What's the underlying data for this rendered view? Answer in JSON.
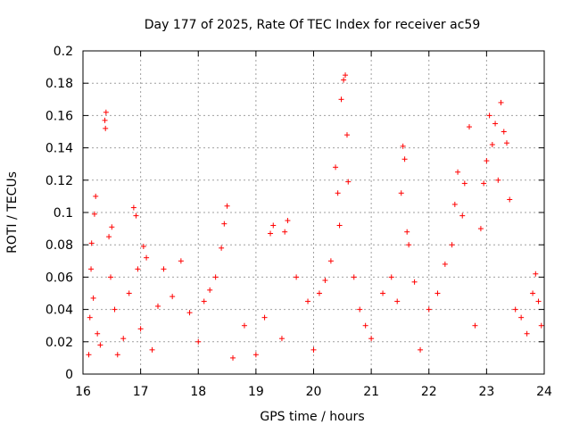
{
  "chart_data": {
    "type": "scatter",
    "title": "Day 177 of 2025, Rate Of TEC Index for receiver ac59",
    "xlabel": "GPS time / hours",
    "ylabel": "ROTI / TECUs",
    "xlim": [
      16,
      24
    ],
    "ylim": [
      0,
      0.2
    ],
    "grid": true,
    "marker": "plus",
    "color": "#ff0000",
    "x_ticks": [
      "16",
      "17",
      "18",
      "19",
      "20",
      "21",
      "22",
      "23",
      "24"
    ],
    "y_ticks": [
      "0",
      "0.02",
      "0.04",
      "0.06",
      "0.08",
      "0.1",
      "0.12",
      "0.14",
      "0.16",
      "0.18",
      "0.2"
    ],
    "x_tick_values": [
      16,
      17,
      18,
      19,
      20,
      21,
      22,
      23,
      24
    ],
    "y_tick_values": [
      0,
      0.02,
      0.04,
      0.06,
      0.08,
      0.1,
      0.12,
      0.14,
      0.16,
      0.18,
      0.2
    ],
    "series": [
      {
        "points": [
          [
            16.1,
            0.012
          ],
          [
            16.12,
            0.035
          ],
          [
            16.14,
            0.065
          ],
          [
            16.15,
            0.081
          ],
          [
            16.18,
            0.047
          ],
          [
            16.2,
            0.099
          ],
          [
            16.22,
            0.11
          ],
          [
            16.25,
            0.025
          ],
          [
            16.3,
            0.018
          ],
          [
            16.38,
            0.157
          ],
          [
            16.4,
            0.162
          ],
          [
            16.39,
            0.152
          ],
          [
            16.45,
            0.085
          ],
          [
            16.48,
            0.06
          ],
          [
            16.5,
            0.091
          ],
          [
            16.55,
            0.04
          ],
          [
            16.6,
            0.012
          ],
          [
            16.7,
            0.022
          ],
          [
            16.8,
            0.05
          ],
          [
            16.88,
            0.103
          ],
          [
            16.92,
            0.098
          ],
          [
            16.95,
            0.065
          ],
          [
            17.0,
            0.028
          ],
          [
            17.05,
            0.079
          ],
          [
            17.1,
            0.072
          ],
          [
            17.2,
            0.015
          ],
          [
            17.3,
            0.042
          ],
          [
            17.4,
            0.065
          ],
          [
            17.55,
            0.048
          ],
          [
            17.7,
            0.07
          ],
          [
            17.85,
            0.038
          ],
          [
            18.0,
            0.02
          ],
          [
            18.1,
            0.045
          ],
          [
            18.2,
            0.052
          ],
          [
            18.3,
            0.06
          ],
          [
            18.4,
            0.078
          ],
          [
            18.45,
            0.093
          ],
          [
            18.5,
            0.104
          ],
          [
            18.6,
            0.01
          ],
          [
            18.8,
            0.03
          ],
          [
            19.0,
            0.012
          ],
          [
            19.15,
            0.035
          ],
          [
            19.25,
            0.087
          ],
          [
            19.3,
            0.092
          ],
          [
            19.45,
            0.022
          ],
          [
            19.5,
            0.088
          ],
          [
            19.55,
            0.095
          ],
          [
            19.7,
            0.06
          ],
          [
            19.9,
            0.045
          ],
          [
            20.0,
            0.015
          ],
          [
            20.1,
            0.05
          ],
          [
            20.2,
            0.058
          ],
          [
            20.3,
            0.07
          ],
          [
            20.38,
            0.128
          ],
          [
            20.42,
            0.112
          ],
          [
            20.45,
            0.092
          ],
          [
            20.48,
            0.17
          ],
          [
            20.52,
            0.182
          ],
          [
            20.55,
            0.185
          ],
          [
            20.58,
            0.148
          ],
          [
            20.6,
            0.119
          ],
          [
            20.7,
            0.06
          ],
          [
            20.8,
            0.04
          ],
          [
            20.9,
            0.03
          ],
          [
            21.0,
            0.022
          ],
          [
            21.2,
            0.05
          ],
          [
            21.35,
            0.06
          ],
          [
            21.45,
            0.045
          ],
          [
            21.52,
            0.112
          ],
          [
            21.55,
            0.141
          ],
          [
            21.58,
            0.133
          ],
          [
            21.62,
            0.088
          ],
          [
            21.65,
            0.08
          ],
          [
            21.75,
            0.057
          ],
          [
            21.85,
            0.015
          ],
          [
            22.0,
            0.04
          ],
          [
            22.15,
            0.05
          ],
          [
            22.28,
            0.068
          ],
          [
            22.4,
            0.08
          ],
          [
            22.45,
            0.105
          ],
          [
            22.5,
            0.125
          ],
          [
            22.58,
            0.098
          ],
          [
            22.62,
            0.118
          ],
          [
            22.7,
            0.153
          ],
          [
            22.8,
            0.03
          ],
          [
            22.9,
            0.09
          ],
          [
            22.95,
            0.118
          ],
          [
            23.0,
            0.132
          ],
          [
            23.05,
            0.16
          ],
          [
            23.1,
            0.142
          ],
          [
            23.15,
            0.155
          ],
          [
            23.2,
            0.12
          ],
          [
            23.25,
            0.168
          ],
          [
            23.3,
            0.15
          ],
          [
            23.35,
            0.143
          ],
          [
            23.4,
            0.108
          ],
          [
            23.5,
            0.04
          ],
          [
            23.6,
            0.035
          ],
          [
            23.7,
            0.025
          ],
          [
            23.8,
            0.05
          ],
          [
            23.85,
            0.062
          ],
          [
            23.9,
            0.045
          ],
          [
            23.95,
            0.03
          ]
        ]
      }
    ]
  }
}
